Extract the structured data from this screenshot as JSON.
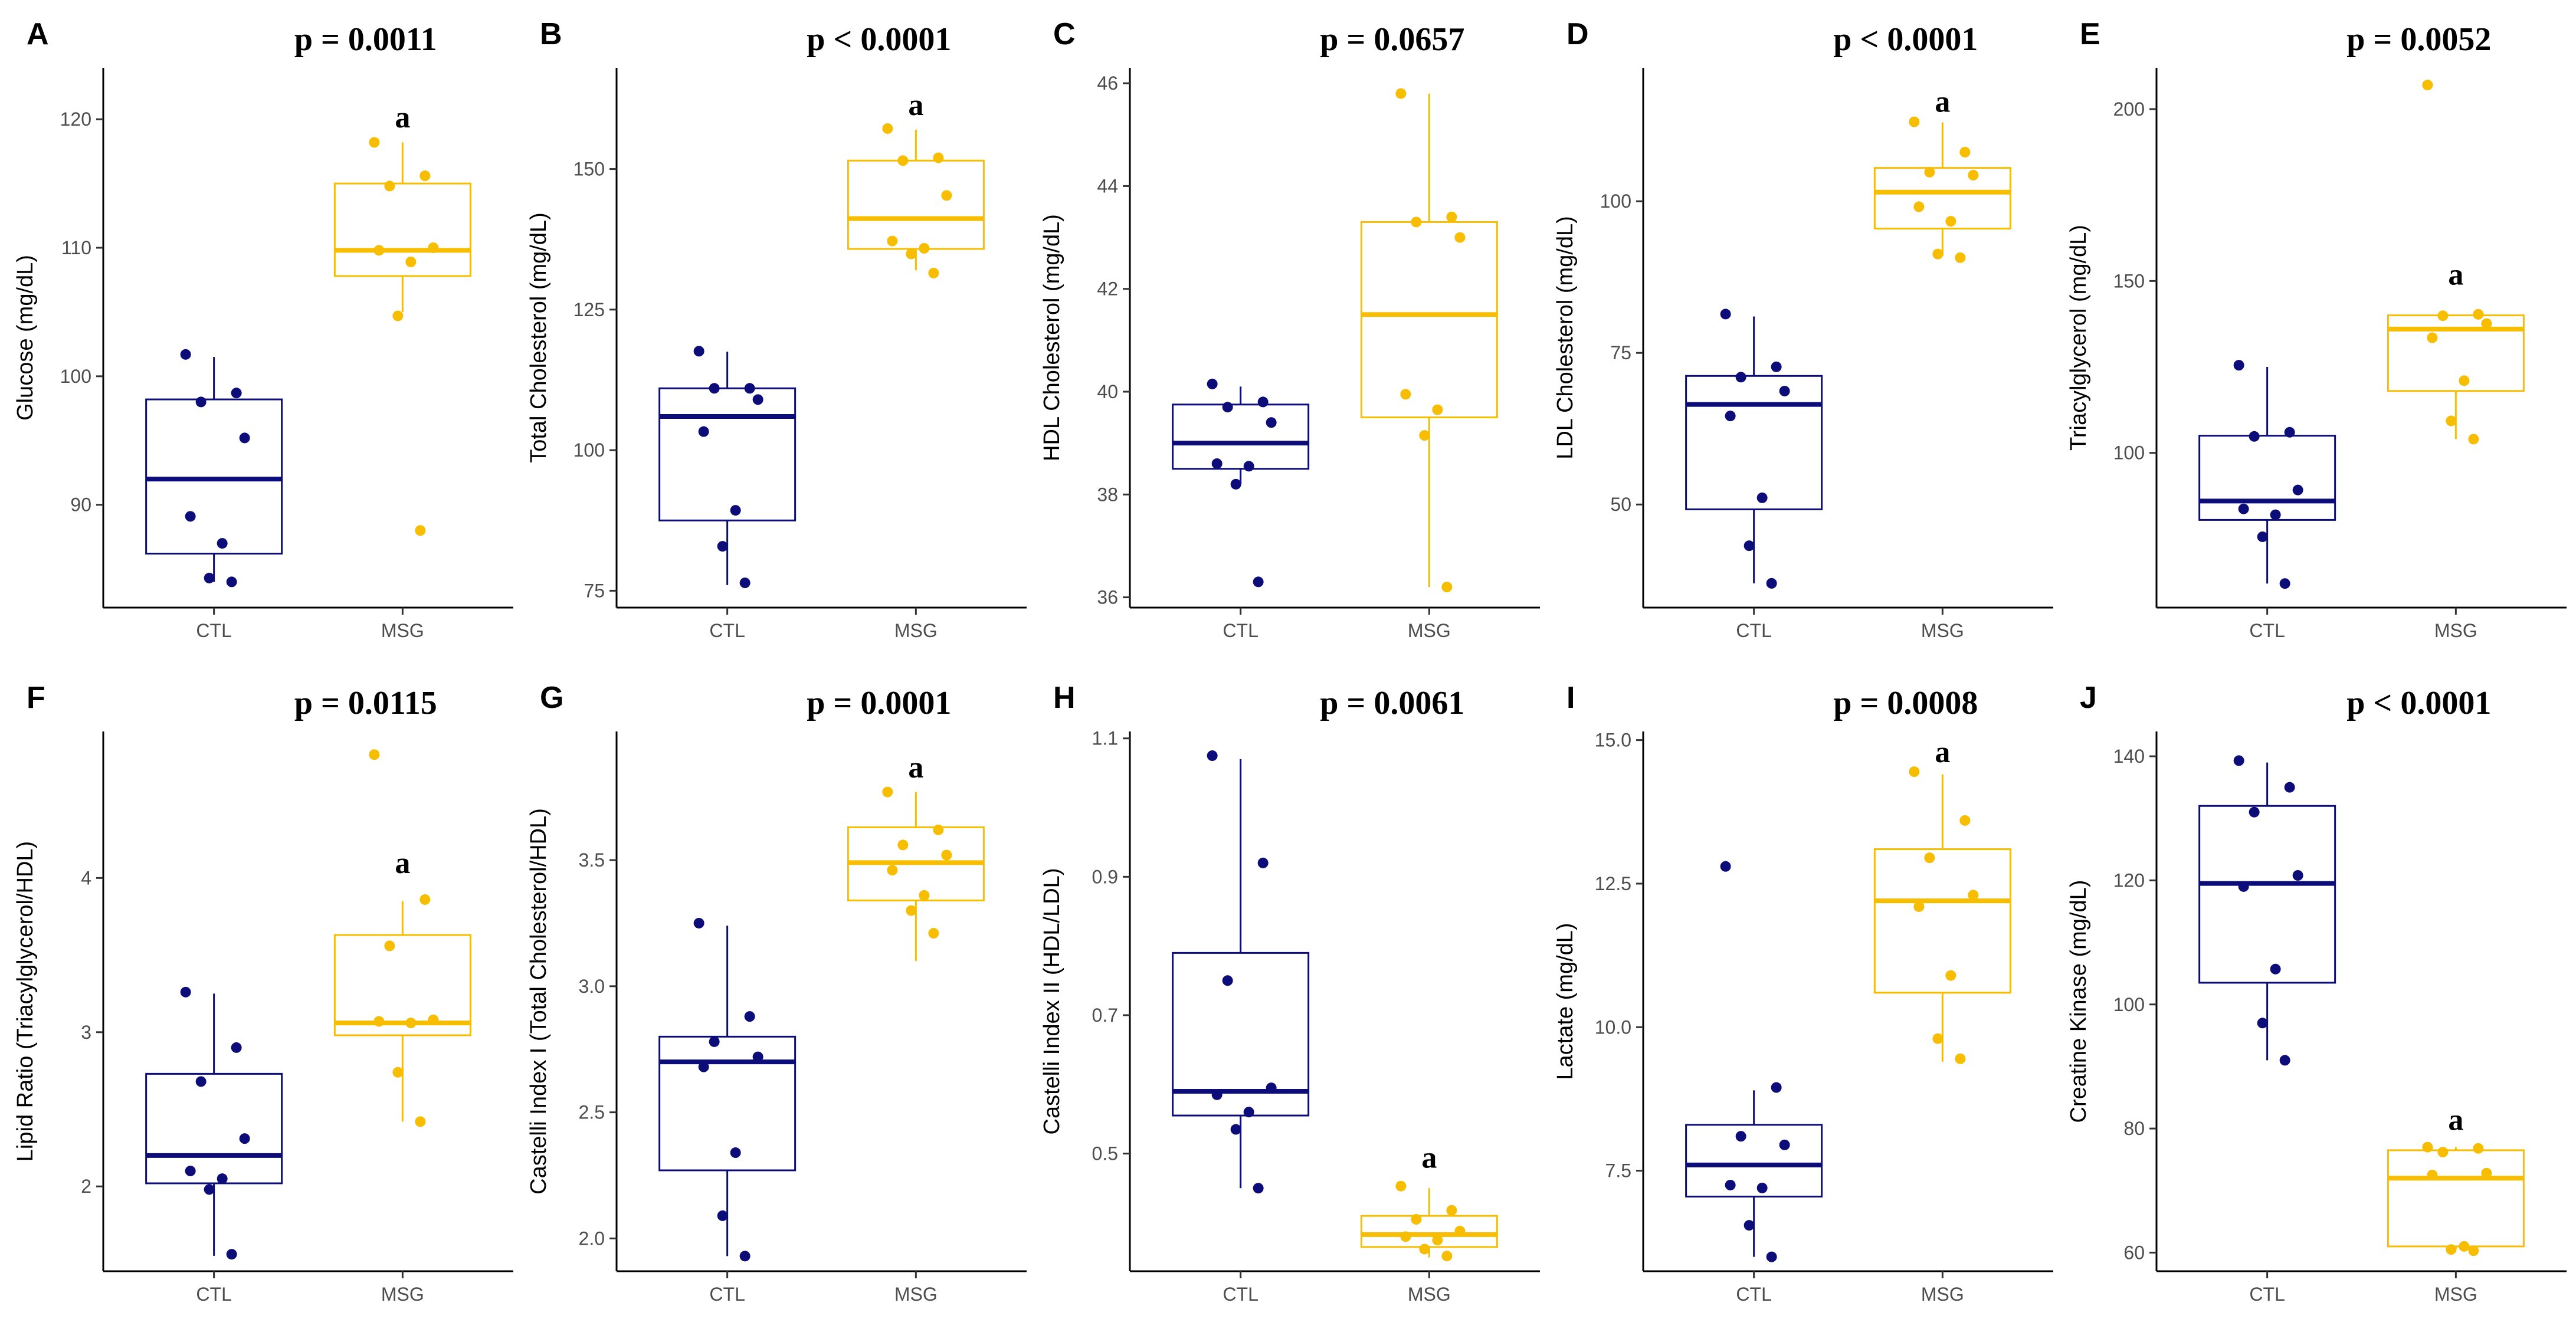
{
  "colors": {
    "ctl": "#0d0d7a",
    "msg": "#f7bd00",
    "axis": "#000000",
    "tick_text": "#4d4d4d"
  },
  "chart_data": [
    {
      "panel": "A",
      "type": "box",
      "categories": [
        "CTL",
        "MSG"
      ],
      "ylabel": "Glucose (mg/dL)",
      "pvalue": "p = 0.0011",
      "ylim": [
        82,
        124
      ],
      "yticks": [
        90,
        100,
        110,
        120
      ],
      "ytick_labels": [
        "90",
        "100",
        "110",
        "120"
      ],
      "boxes": [
        {
          "group": "CTL",
          "min": 84,
          "q1": 86.2,
          "median": 92,
          "q3": 98.2,
          "max": 101.5
        },
        {
          "group": "MSG",
          "min": 105,
          "q1": 107.8,
          "median": 109.8,
          "q3": 115,
          "max": 118.2
        }
      ],
      "points": {
        "CTL": [
          101.7,
          98.7,
          98,
          95.2,
          89.1,
          87,
          84.3,
          84
        ],
        "MSG": [
          118.2,
          115.6,
          114.8,
          110,
          109.8,
          108.9,
          104.7,
          88
        ]
      },
      "sig": [
        {
          "group": "MSG",
          "y": 120.2,
          "label": "a"
        }
      ]
    },
    {
      "panel": "B",
      "type": "box",
      "categories": [
        "CTL",
        "MSG"
      ],
      "ylabel": "Total Cholesterol (mg/dL)",
      "pvalue": "p < 0.0001",
      "ylim": [
        72,
        168
      ],
      "yticks": [
        75,
        100,
        125,
        150
      ],
      "ytick_labels": [
        "75",
        "100",
        "125",
        "150"
      ],
      "boxes": [
        {
          "group": "CTL",
          "min": 76,
          "q1": 87.5,
          "median": 106,
          "q3": 111,
          "max": 117.5
        },
        {
          "group": "MSG",
          "min": 132,
          "q1": 135.8,
          "median": 141.2,
          "q3": 151.5,
          "max": 157
        }
      ],
      "points": {
        "CTL": [
          117.6,
          111,
          111,
          109,
          103.3,
          89.3,
          82.9,
          76.4
        ],
        "MSG": [
          157.2,
          152,
          151.5,
          145.3,
          137.2,
          135.9,
          134.9,
          131.5
        ]
      },
      "sig": [
        {
          "group": "MSG",
          "y": 161.5,
          "label": "a"
        }
      ]
    },
    {
      "panel": "C",
      "type": "box",
      "categories": [
        "CTL",
        "MSG"
      ],
      "ylabel": "HDL Cholesterol (mg/dL)",
      "pvalue": "p = 0.0657",
      "ylim": [
        35.8,
        46.3
      ],
      "yticks": [
        36,
        38,
        40,
        42,
        44,
        46
      ],
      "ytick_labels": [
        "36",
        "38",
        "40",
        "42",
        "44",
        "46"
      ],
      "boxes": [
        {
          "group": "CTL",
          "min": 38.2,
          "q1": 38.5,
          "median": 39,
          "q3": 39.75,
          "max": 40.1
        },
        {
          "group": "MSG",
          "min": 36.2,
          "q1": 39.5,
          "median": 41.5,
          "q3": 43.3,
          "max": 45.8
        }
      ],
      "points": {
        "CTL": [
          40.15,
          39.8,
          39.7,
          39.4,
          38.6,
          38.55,
          38.2,
          36.3
        ],
        "MSG": [
          45.8,
          43.4,
          43.3,
          43,
          39.95,
          39.65,
          39.15,
          36.2
        ]
      },
      "sig": []
    },
    {
      "panel": "D",
      "type": "box",
      "categories": [
        "CTL",
        "MSG"
      ],
      "ylabel": "LDL Cholesterol (mg/dL)",
      "pvalue": "p < 0.0001",
      "ylim": [
        33,
        122
      ],
      "yticks": [
        50,
        75,
        100
      ],
      "ytick_labels": [
        "50",
        "75",
        "100"
      ],
      "boxes": [
        {
          "group": "CTL",
          "min": 37,
          "q1": 49.2,
          "median": 66.5,
          "q3": 71.2,
          "max": 81
        },
        {
          "group": "MSG",
          "min": 91,
          "q1": 95.5,
          "median": 101.5,
          "q3": 105.5,
          "max": 113
        }
      ],
      "points": {
        "CTL": [
          81.4,
          72.7,
          71,
          68.7,
          64.6,
          51.1,
          43.2,
          37
        ],
        "MSG": [
          113.1,
          108.1,
          104.8,
          104.3,
          99.1,
          96.7,
          91.3,
          90.7
        ]
      },
      "sig": [
        {
          "group": "MSG",
          "y": 116.5,
          "label": "a"
        }
      ]
    },
    {
      "panel": "E",
      "type": "box",
      "categories": [
        "CTL",
        "MSG"
      ],
      "ylabel": "Triacylglycerol (mg/dL)",
      "pvalue": "p = 0.0052",
      "ylim": [
        55,
        212
      ],
      "yticks": [
        100,
        150,
        200
      ],
      "ytick_labels": [
        "100",
        "150",
        "200"
      ],
      "boxes": [
        {
          "group": "CTL",
          "min": 62,
          "q1": 80.5,
          "median": 86,
          "q3": 105,
          "max": 125
        },
        {
          "group": "MSG",
          "min": 104,
          "q1": 118,
          "median": 136,
          "q3": 140,
          "max": 140
        }
      ],
      "points": {
        "CTL": [
          125.5,
          106,
          104.8,
          89.2,
          83.7,
          82,
          75.6,
          62
        ],
        "MSG": [
          207,
          140.3,
          139.9,
          137.6,
          133.5,
          121,
          109.3,
          104
        ]
      },
      "sig": [
        {
          "group": "MSG",
          "y": 152,
          "label": "a"
        }
      ]
    },
    {
      "panel": "F",
      "type": "box",
      "categories": [
        "CTL",
        "MSG"
      ],
      "ylabel": "Lipid Ratio (Triacylglycerol/HDL)",
      "pvalue": "p = 0.0115",
      "ylim": [
        1.45,
        4.95
      ],
      "yticks": [
        2,
        3,
        4
      ],
      "ytick_labels": [
        "2",
        "3",
        "4"
      ],
      "boxes": [
        {
          "group": "CTL",
          "min": 1.55,
          "q1": 2.02,
          "median": 2.2,
          "q3": 2.73,
          "max": 3.25
        },
        {
          "group": "MSG",
          "min": 2.42,
          "q1": 2.98,
          "median": 3.06,
          "q3": 3.63,
          "max": 3.85
        }
      ],
      "points": {
        "CTL": [
          3.26,
          2.9,
          2.68,
          2.31,
          2.1,
          2.05,
          1.98,
          1.56
        ],
        "MSG": [
          4.8,
          3.86,
          3.56,
          3.08,
          3.07,
          3.06,
          2.74,
          2.42
        ]
      },
      "sig": [
        {
          "group": "MSG",
          "y": 4.1,
          "label": "a"
        }
      ]
    },
    {
      "panel": "G",
      "type": "box",
      "categories": [
        "CTL",
        "MSG"
      ],
      "ylabel": "Castelli Index I (Total Cholesterol/HDL)",
      "pvalue": "p = 0.0001",
      "ylim": [
        1.87,
        4.01
      ],
      "yticks": [
        2.0,
        2.5,
        3.0,
        3.5
      ],
      "ytick_labels": [
        "2.0",
        "2.5",
        "3.0",
        "3.5"
      ],
      "boxes": [
        {
          "group": "CTL",
          "min": 1.93,
          "q1": 2.27,
          "median": 2.7,
          "q3": 2.8,
          "max": 3.24
        },
        {
          "group": "MSG",
          "min": 3.1,
          "q1": 3.34,
          "median": 3.49,
          "q3": 3.63,
          "max": 3.77
        }
      ],
      "points": {
        "CTL": [
          3.25,
          2.88,
          2.78,
          2.72,
          2.68,
          2.34,
          2.09,
          1.93
        ],
        "MSG": [
          3.77,
          3.62,
          3.56,
          3.52,
          3.46,
          3.36,
          3.3,
          3.21
        ]
      },
      "sig": [
        {
          "group": "MSG",
          "y": 3.87,
          "label": "a"
        }
      ]
    },
    {
      "panel": "H",
      "type": "box",
      "categories": [
        "CTL",
        "MSG"
      ],
      "ylabel": "Castelli Index II (HDL/LDL)",
      "pvalue": "p = 0.0061",
      "ylim": [
        0.33,
        1.11
      ],
      "yticks": [
        0.5,
        0.7,
        0.9,
        1.1
      ],
      "ytick_labels": [
        "0.5",
        "0.7",
        "0.9",
        "1.1"
      ],
      "boxes": [
        {
          "group": "CTL",
          "min": 0.45,
          "q1": 0.555,
          "median": 0.59,
          "q3": 0.79,
          "max": 1.07
        },
        {
          "group": "MSG",
          "min": 0.35,
          "q1": 0.365,
          "median": 0.383,
          "q3": 0.41,
          "max": 0.45
        }
      ],
      "points": {
        "CTL": [
          1.075,
          0.92,
          0.75,
          0.595,
          0.585,
          0.56,
          0.535,
          0.45
        ],
        "MSG": [
          0.453,
          0.418,
          0.405,
          0.388,
          0.38,
          0.375,
          0.362,
          0.352
        ]
      },
      "sig": [
        {
          "group": "MSG",
          "y": 0.495,
          "label": "a"
        }
      ]
    },
    {
      "panel": "I",
      "type": "box",
      "categories": [
        "CTL",
        "MSG"
      ],
      "ylabel": "Lactate (mg/dL)",
      "pvalue": "p = 0.0008",
      "ylim": [
        5.75,
        15.15
      ],
      "yticks": [
        7.5,
        10.0,
        12.5,
        15.0
      ],
      "ytick_labels": [
        "7.5",
        "10.0",
        "12.5",
        "15.0"
      ],
      "boxes": [
        {
          "group": "CTL",
          "min": 6,
          "q1": 7.05,
          "median": 7.6,
          "q3": 8.3,
          "max": 8.9
        },
        {
          "group": "MSG",
          "min": 9.4,
          "q1": 10.6,
          "median": 12.2,
          "q3": 13.1,
          "max": 14.4
        }
      ],
      "points": {
        "CTL": [
          12.8,
          8.95,
          8.1,
          7.95,
          7.25,
          7.2,
          6.55,
          6
        ],
        "MSG": [
          14.45,
          13.6,
          12.95,
          12.3,
          12.1,
          10.9,
          9.8,
          9.45
        ]
      },
      "sig": [
        {
          "group": "MSG",
          "y": 14.8,
          "label": "a"
        }
      ]
    },
    {
      "panel": "J",
      "type": "box",
      "categories": [
        "CTL",
        "MSG"
      ],
      "ylabel": "Creatine Kinase (mg/dL)",
      "pvalue": "p < 0.0001",
      "ylim": [
        57,
        144
      ],
      "yticks": [
        60,
        80,
        100,
        120,
        140
      ],
      "ytick_labels": [
        "60",
        "80",
        "100",
        "120",
        "140"
      ],
      "boxes": [
        {
          "group": "CTL",
          "min": 91,
          "q1": 103.5,
          "median": 119.5,
          "q3": 132,
          "max": 139
        },
        {
          "group": "MSG",
          "min": 60.5,
          "q1": 61,
          "median": 72,
          "q3": 76.5,
          "max": 77
        }
      ],
      "points": {
        "CTL": [
          139.3,
          135,
          131,
          120.8,
          119,
          105.7,
          97,
          91
        ],
        "MSG": [
          77,
          76.8,
          76.2,
          72.8,
          72.5,
          61,
          60.5,
          60.3
        ]
      },
      "sig": [
        {
          "group": "MSG",
          "y": 81.5,
          "label": "a"
        }
      ]
    }
  ]
}
